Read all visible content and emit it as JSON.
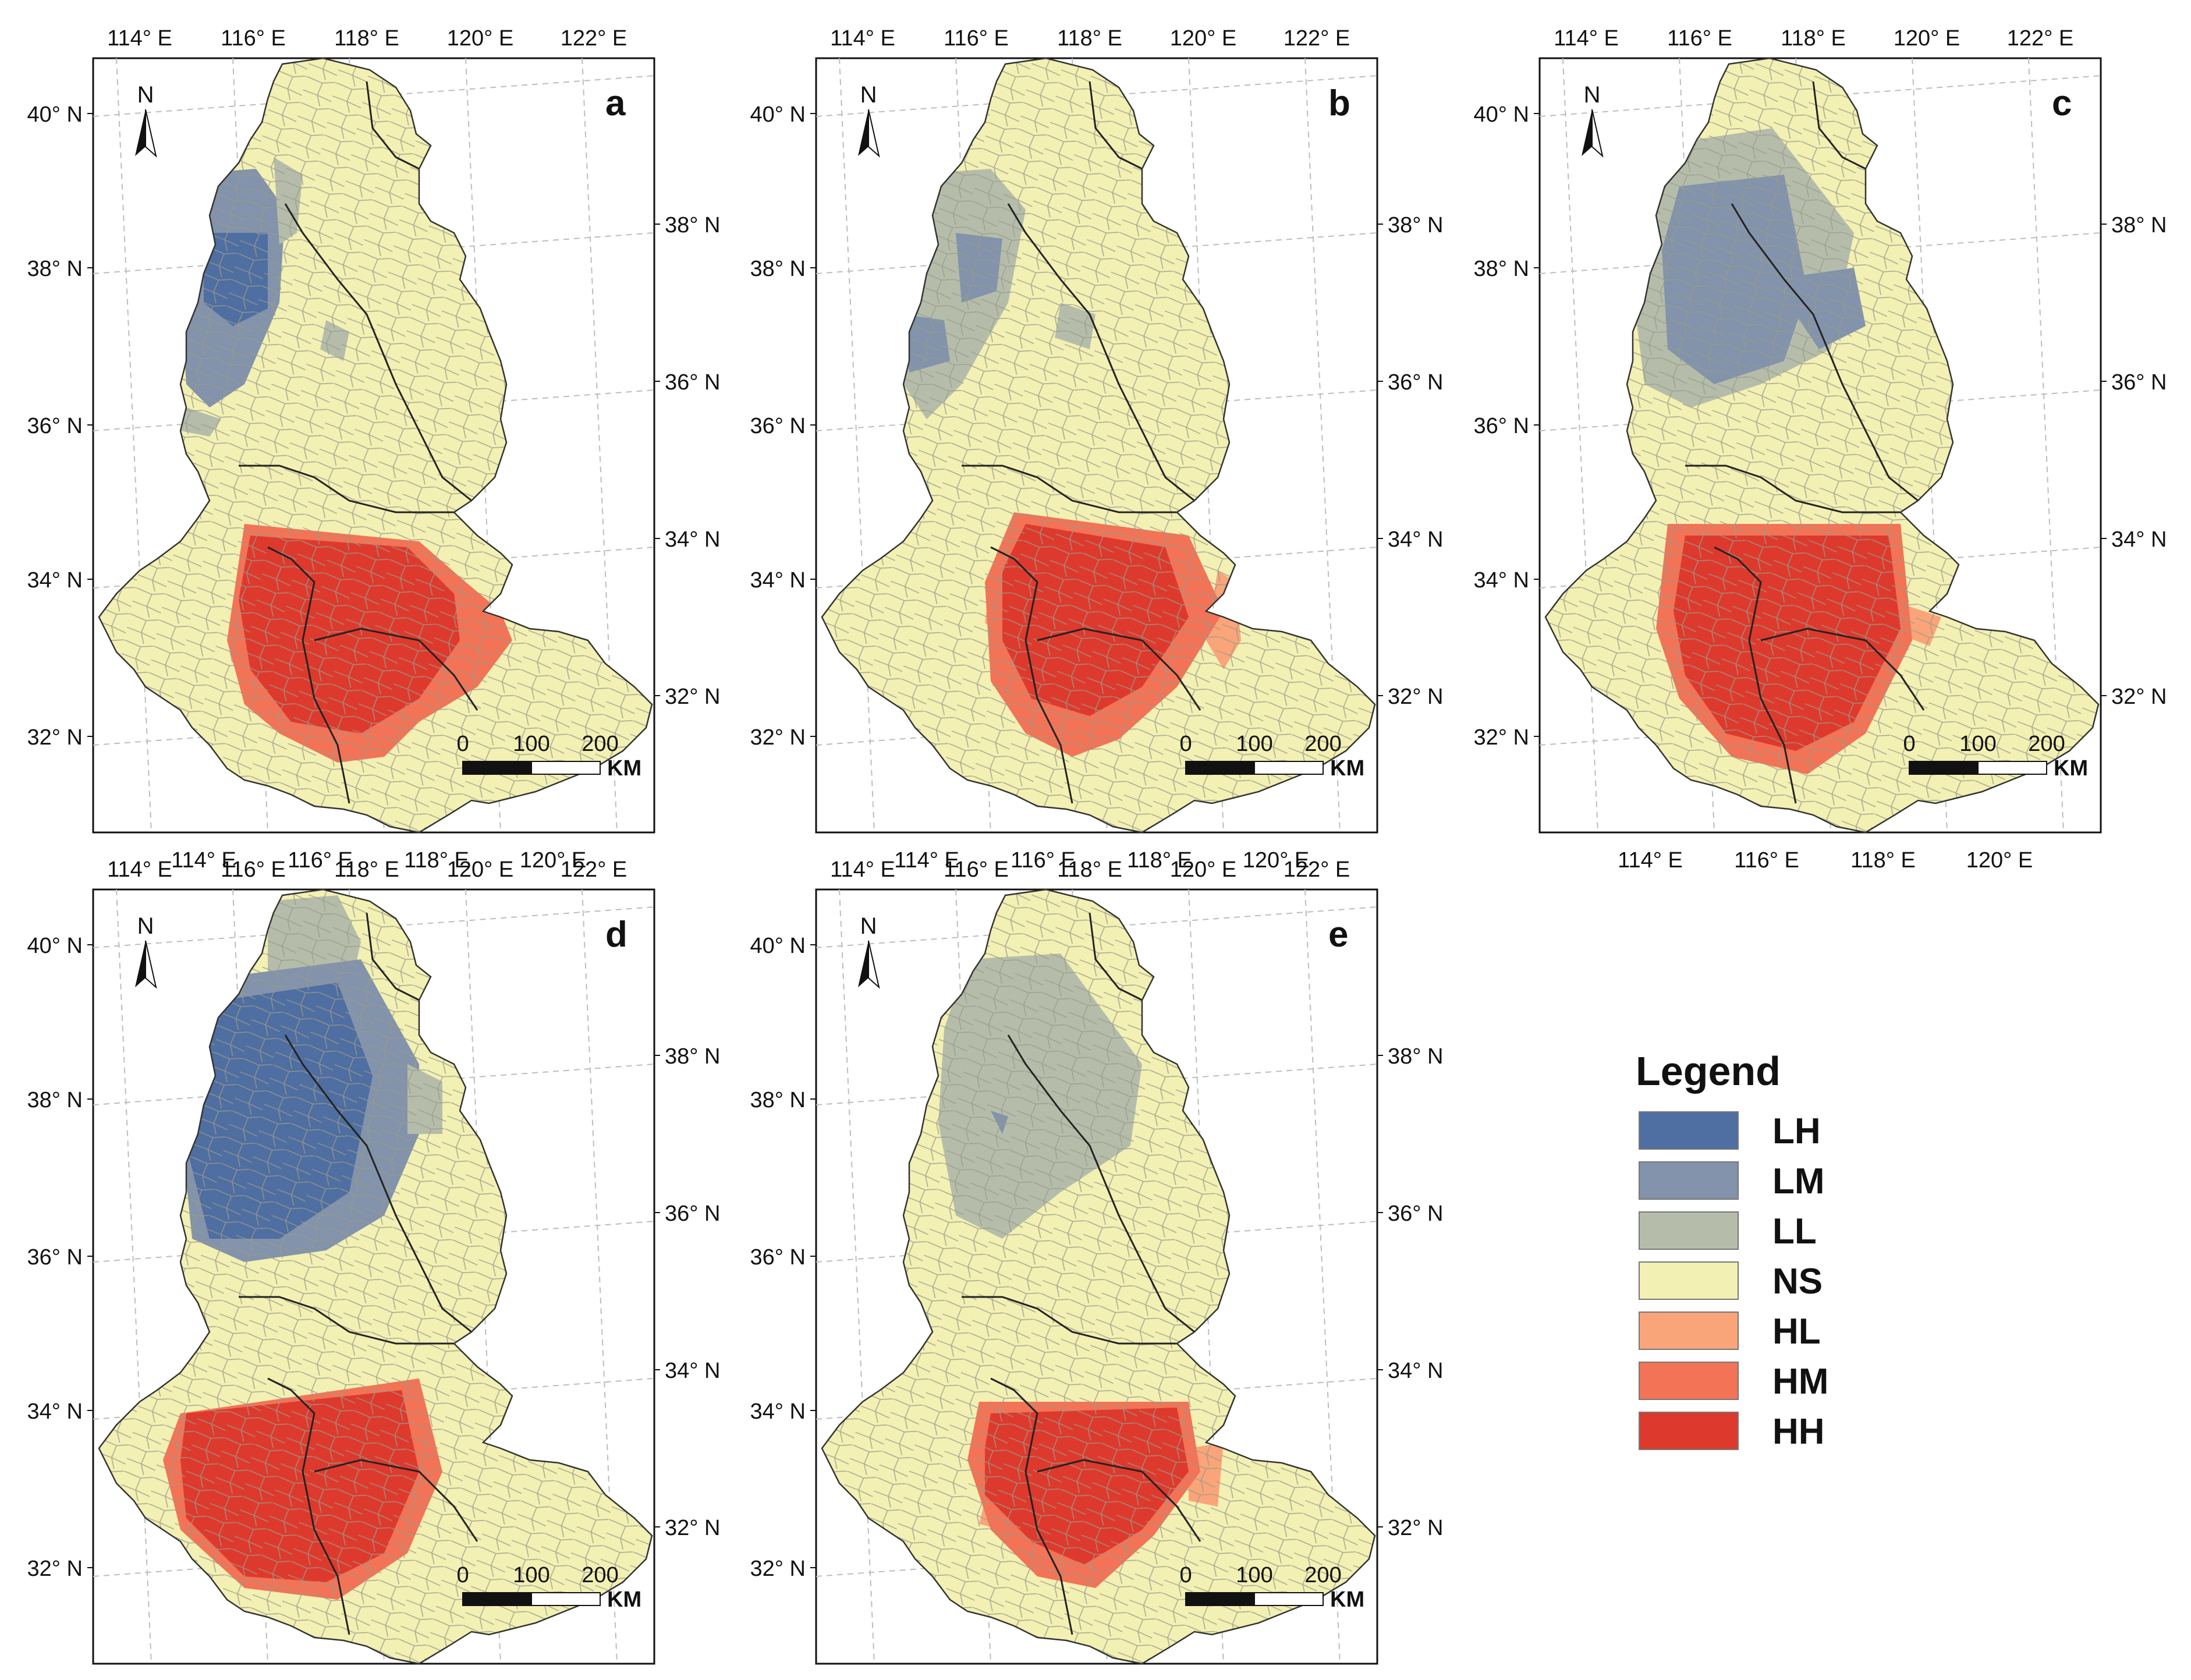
{
  "colors": {
    "LH": "#4f6ea1",
    "LM": "#8293ab",
    "LL": "#b5bdaa",
    "NS": "#f2f0b3",
    "HL": "#f9a579",
    "HM": "#f27356",
    "HH": "#dd3a2d",
    "boundary": "#222222",
    "county": "#9a9a8a",
    "grid": "#bdbdbd"
  },
  "axis": {
    "top": [
      "114° E",
      "116° E",
      "118° E",
      "120° E",
      "122° E"
    ],
    "bottom": [
      "114° E",
      "116° E",
      "118° E",
      "120° E"
    ],
    "left": [
      "40° N",
      "38° N",
      "36° N",
      "34° N",
      "32° N"
    ],
    "right": [
      "38° N",
      "36° N",
      "34° N",
      "32° N"
    ]
  },
  "north_label": "N",
  "scalebar": {
    "ticks": [
      "0",
      "100",
      "200"
    ],
    "unit": "KM"
  },
  "panels": [
    {
      "id": "a",
      "label": "a"
    },
    {
      "id": "b",
      "label": "b"
    },
    {
      "id": "c",
      "label": "c"
    },
    {
      "id": "d",
      "label": "d"
    },
    {
      "id": "e",
      "label": "e"
    }
  ],
  "legend": {
    "title": "Legend",
    "items": [
      {
        "key": "LH",
        "label": "LH"
      },
      {
        "key": "LM",
        "label": "LM"
      },
      {
        "key": "LL",
        "label": "LL"
      },
      {
        "key": "NS",
        "label": "NS"
      },
      {
        "key": "HL",
        "label": "HL"
      },
      {
        "key": "HM",
        "label": "HM"
      },
      {
        "key": "HH",
        "label": "HH"
      }
    ]
  }
}
